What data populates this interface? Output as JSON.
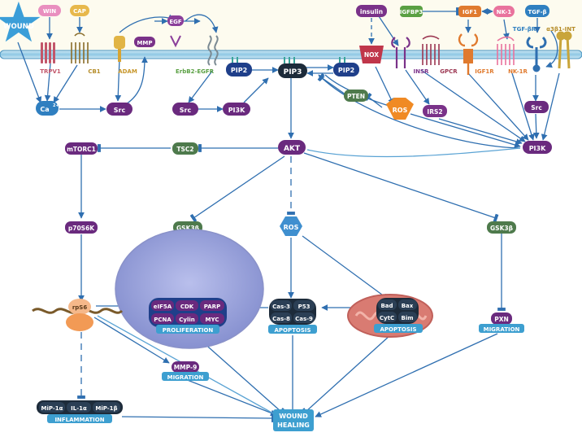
{
  "nodes": {
    "wound": "WOUND",
    "win": "WIN",
    "cap": "CAP",
    "trpv1": "TRPV1",
    "cb1": "CB1",
    "adam": "ADAM",
    "mmp": "MMP",
    "egf": "EGF",
    "erbb2_egfr": "ErbB2-EGFR",
    "ca": "Ca",
    "ca_sup": "2+",
    "src1": "Src",
    "src2": "Src",
    "src3": "Src",
    "pi3k1": "PI3K",
    "pi3k2": "PI3K",
    "pip2_left": "PIP2",
    "pip3": "PIP3",
    "pip2_right": "PIP2",
    "insulin": "insulin",
    "nox": "NOX",
    "igfbp3": "IGFBP3",
    "igf1": "IGF1",
    "nk1": "NK-1",
    "tgfb": "TGF-β",
    "tgfbr": "TGF-βR",
    "a3b1int": "α3β1-INT",
    "insr": "INSR",
    "gpcr": "GPCR",
    "igf1r": "IGF1R",
    "nk1r": "NK-1R",
    "pten": "PTEN",
    "ros_top": "ROS",
    "irs2": "IRS2",
    "akt": "AKT",
    "mtorc1": "mTORC1",
    "tsc2": "TSC2",
    "p70s6k": "p70S6K",
    "gsk3b_left": "GSK3β",
    "ros_mid": "ROS",
    "gsk3b_right": "GSK3β",
    "rps6": "rpS6",
    "eif5a": "eIF5A",
    "cdk": "CDK",
    "parp": "PARP",
    "pcna": "PCNA",
    "cylin": "Cylin",
    "myc": "MYC",
    "proliferation": "PROLIFERATION",
    "cas3": "Cas-3",
    "p53": "P53",
    "cas8": "Cas-8",
    "cas9": "Cas-9",
    "apoptosis1": "APOPTOSIS",
    "bad": "Bad",
    "bax": "Bax",
    "cytc": "CytC",
    "bim": "Bim",
    "apoptosis2": "APOPTOSIS",
    "pxn": "PXN",
    "migration_right": "MIGRATION",
    "mmp9": "MMP-9",
    "migration_left": "MIGRATION",
    "mip1a": "MiP-1α",
    "il1a": "IL-1α",
    "mip1b": "MiP-1β",
    "inflammation": "INFLAMMATION",
    "wound_healing_1": "WOUND",
    "wound_healing_2": "HEALING"
  },
  "colors": {
    "membrane": "#a9d6ea",
    "membrane_edge": "#4a94c0",
    "arrow": "#2f6fb0",
    "arrow_light": "#5aa3d4",
    "purple": "#6a2a7e",
    "navy": "#1f3f8a",
    "green": "#4e7a4c",
    "dark": "#1d2b3a",
    "label_blue": "#3d9fd0",
    "nucleus": "#9aa3dc",
    "mito": "#d97b72",
    "ros": "#f08a24",
    "star": "#3b9ed8"
  }
}
